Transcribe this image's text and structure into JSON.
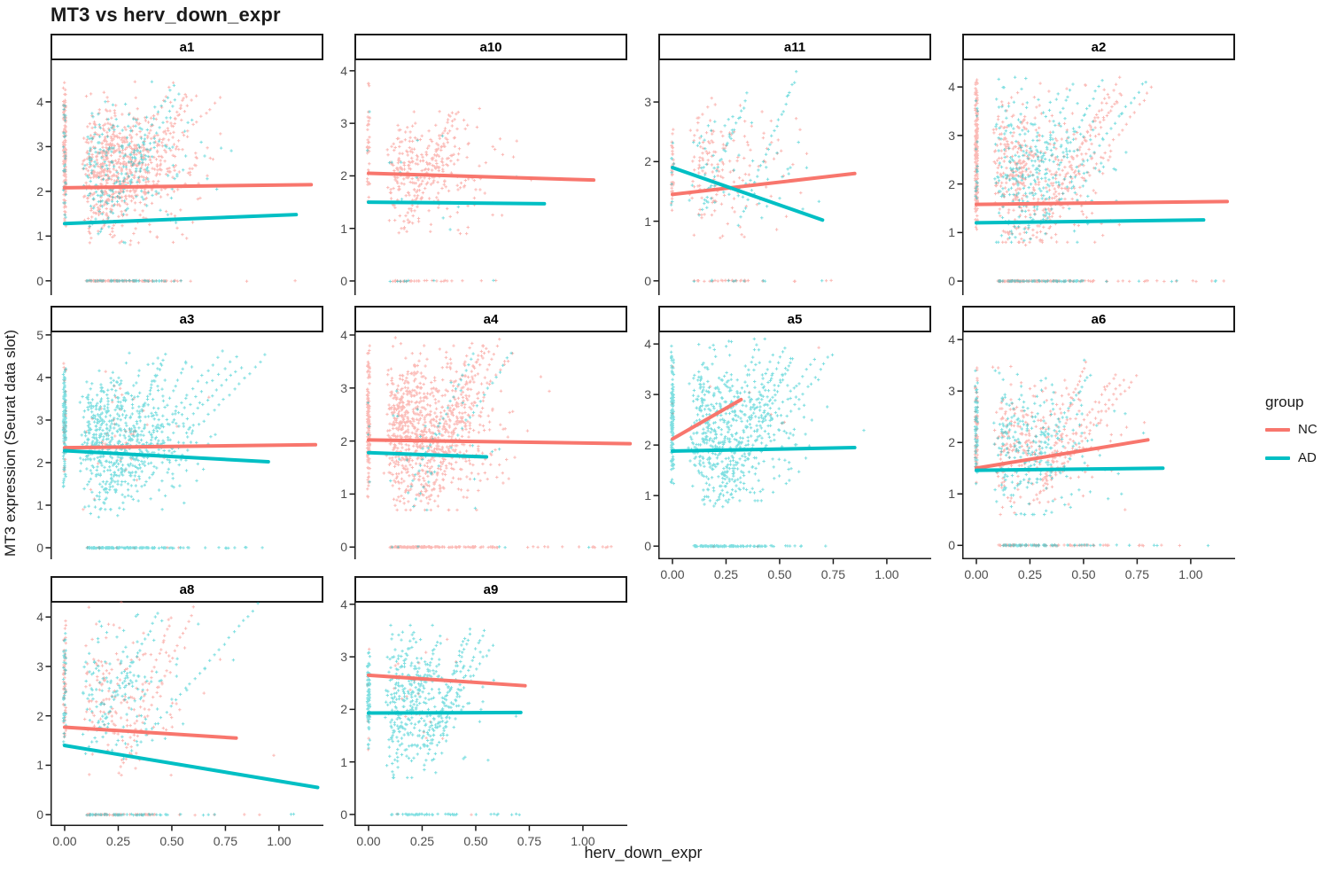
{
  "chart_data": {
    "type": "scatter",
    "title": "MT3 vs herv_down_expr",
    "xlabel": "herv_down_expr",
    "ylabel": "MT3 expression (Seurat data slot)",
    "grid": "off",
    "legend": {
      "title": "group",
      "position": "right",
      "entries": [
        {
          "label": "NC",
          "color": "#F8766D"
        },
        {
          "label": "AD",
          "color": "#00BFC4"
        }
      ]
    },
    "point_style": {
      "shape": "plus",
      "opacity": 0.5,
      "color_nc": "#F8766D",
      "color_ad": "#00BFC4"
    },
    "x_domain": [
      -0.066,
      1.207
    ],
    "x_ticks": {
      "values": [
        0,
        0.25,
        0.5,
        0.75,
        1.0
      ],
      "labels": [
        "0.00",
        "0.25",
        "0.50",
        "0.75",
        "1.00"
      ]
    },
    "facets": [
      {
        "label": "a1",
        "row": 0,
        "col": 0,
        "show_x_axis": false,
        "y_ticks": [
          0,
          1,
          2,
          3,
          4
        ],
        "y_domain": [
          -0.32,
          4.93
        ],
        "trend": {
          "nc": {
            "x": [
              0,
              1.15
            ],
            "y": [
              2.08,
              2.15
            ]
          },
          "ad": {
            "x": [
              0,
              1.08
            ],
            "y": [
              1.28,
              1.48
            ]
          }
        },
        "scatter": {
          "cloud": {
            "nc": 620,
            "ad": 220,
            "y_mean": 2.55,
            "y_sd": 0.68,
            "y_min": 0.85,
            "y_max": 4.45,
            "x_max": 1.18
          },
          "x0_stripe": {
            "nc": 140,
            "ad": 30,
            "y_min": 1.1,
            "y_max": 4.65
          },
          "y0_rug": {
            "nc": 110,
            "ad": 45,
            "x_max": 1.1
          },
          "streaks": {
            "count": 7,
            "nc_frac": 0.72
          }
        }
      },
      {
        "label": "a10",
        "row": 0,
        "col": 1,
        "show_x_axis": false,
        "y_ticks": [
          0,
          1,
          2,
          3,
          4
        ],
        "y_domain": [
          -0.27,
          4.2
        ],
        "trend": {
          "nc": {
            "x": [
              0,
              1.05
            ],
            "y": [
              2.05,
              1.92
            ]
          },
          "ad": {
            "x": [
              0,
              0.82
            ],
            "y": [
              1.5,
              1.47
            ]
          }
        },
        "scatter": {
          "cloud": {
            "nc": 290,
            "ad": 12,
            "y_mean": 2.1,
            "y_sd": 0.52,
            "y_min": 0.9,
            "y_max": 3.45,
            "x_max": 1.05
          },
          "x0_stripe": {
            "nc": 35,
            "ad": 3,
            "y_min": 1.2,
            "y_max": 3.95
          },
          "y0_rug": {
            "nc": 30,
            "ad": 8,
            "x_max": 0.62
          },
          "streaks": {
            "count": 2,
            "nc_frac": 0.95
          }
        }
      },
      {
        "label": "a11",
        "row": 0,
        "col": 2,
        "show_x_axis": false,
        "y_ticks": [
          0,
          1,
          2,
          3
        ],
        "y_domain": [
          -0.24,
          3.7
        ],
        "trend": {
          "nc": {
            "x": [
              0,
              0.85
            ],
            "y": [
              1.45,
              1.8
            ]
          },
          "ad": {
            "x": [
              0,
              0.7
            ],
            "y": [
              1.9,
              1.02
            ]
          }
        },
        "scatter": {
          "cloud": {
            "nc": 160,
            "ad": 62,
            "y_mean": 1.85,
            "y_sd": 0.5,
            "y_min": 0.7,
            "y_max": 3.5,
            "x_max": 0.9
          },
          "x0_stripe": {
            "nc": 35,
            "ad": 8,
            "y_min": 0.95,
            "y_max": 2.75
          },
          "y0_rug": {
            "nc": 32,
            "ad": 10,
            "x_max": 0.78
          },
          "streaks": {
            "count": 2,
            "nc_frac": 0.7
          }
        }
      },
      {
        "label": "a2",
        "row": 0,
        "col": 3,
        "show_x_axis": false,
        "y_ticks": [
          0,
          1,
          2,
          3,
          4
        ],
        "y_domain": [
          -0.29,
          4.55
        ],
        "trend": {
          "nc": {
            "x": [
              0,
              1.17
            ],
            "y": [
              1.58,
              1.64
            ]
          },
          "ad": {
            "x": [
              0,
              1.06
            ],
            "y": [
              1.2,
              1.26
            ]
          }
        },
        "scatter": {
          "cloud": {
            "nc": 380,
            "ad": 280,
            "y_mean": 2.3,
            "y_sd": 0.72,
            "y_min": 0.8,
            "y_max": 4.2,
            "x_max": 1.18
          },
          "x0_stripe": {
            "nc": 200,
            "ad": 18,
            "y_min": 0.95,
            "y_max": 4.35
          },
          "y0_rug": {
            "nc": 150,
            "ad": 70,
            "x_max": 1.18
          },
          "streaks": {
            "count": 8,
            "nc_frac": 0.6
          }
        }
      },
      {
        "label": "a3",
        "row": 1,
        "col": 0,
        "show_x_axis": false,
        "y_ticks": [
          0,
          1,
          2,
          3,
          4,
          5
        ],
        "y_domain": [
          -0.27,
          5.06
        ],
        "trend": {
          "nc": {
            "x": [
              0,
              1.17
            ],
            "y": [
              2.35,
              2.42
            ]
          },
          "ad": {
            "x": [
              0,
              0.95
            ],
            "y": [
              2.28,
              2.02
            ]
          }
        },
        "scatter": {
          "cloud": {
            "nc": 40,
            "ad": 580,
            "y_mean": 2.65,
            "y_sd": 0.72,
            "y_min": 0.9,
            "y_max": 4.65,
            "x_max": 1.17
          },
          "x0_stripe": {
            "nc": 28,
            "ad": 150,
            "y_min": 1.3,
            "y_max": 4.45
          },
          "y0_rug": {
            "nc": 8,
            "ad": 140,
            "x_max": 0.95
          },
          "streaks": {
            "count": 7,
            "nc_frac": 0.08
          }
        }
      },
      {
        "label": "a4",
        "row": 1,
        "col": 1,
        "show_x_axis": false,
        "y_ticks": [
          0,
          1,
          2,
          3,
          4
        ],
        "y_domain": [
          -0.23,
          4.05
        ],
        "trend": {
          "nc": {
            "x": [
              0,
              1.22
            ],
            "y": [
              2.02,
              1.95
            ]
          },
          "ad": {
            "x": [
              0,
              0.55
            ],
            "y": [
              1.78,
              1.7
            ]
          }
        },
        "scatter": {
          "cloud": {
            "nc": 760,
            "ad": 28,
            "y_mean": 2.2,
            "y_sd": 0.68,
            "y_min": 0.7,
            "y_max": 3.95,
            "x_max": 1.2
          },
          "x0_stripe": {
            "nc": 140,
            "ad": 4,
            "y_min": 0.85,
            "y_max": 3.9
          },
          "y0_rug": {
            "nc": 150,
            "ad": 6,
            "x_max": 1.15
          },
          "streaks": {
            "count": 8,
            "nc_frac": 0.95
          }
        }
      },
      {
        "label": "a5",
        "row": 1,
        "col": 2,
        "show_x_axis": true,
        "y_ticks": [
          0,
          1,
          2,
          3,
          4
        ],
        "y_domain": [
          -0.26,
          4.23
        ],
        "trend": {
          "nc": {
            "x": [
              0,
              0.32
            ],
            "y": [
              2.12,
              2.9
            ]
          },
          "ad": {
            "x": [
              0,
              0.85
            ],
            "y": [
              1.88,
              1.95
            ]
          }
        },
        "scatter": {
          "cloud": {
            "nc": 6,
            "ad": 500,
            "y_mean": 2.35,
            "y_sd": 0.68,
            "y_min": 0.9,
            "y_max": 4.1,
            "x_max": 0.95
          },
          "x0_stripe": {
            "nc": 3,
            "ad": 140,
            "y_min": 1.0,
            "y_max": 4.1
          },
          "y0_rug": {
            "nc": 2,
            "ad": 110,
            "x_max": 0.8
          },
          "streaks": {
            "count": 7,
            "nc_frac": 0.05
          }
        }
      },
      {
        "label": "a6",
        "row": 1,
        "col": 3,
        "show_x_axis": true,
        "y_ticks": [
          0,
          1,
          2,
          3,
          4
        ],
        "y_domain": [
          -0.27,
          4.14
        ],
        "trend": {
          "nc": {
            "x": [
              0,
              0.8
            ],
            "y": [
              1.5,
              2.05
            ]
          },
          "ad": {
            "x": [
              0,
              0.87
            ],
            "y": [
              1.46,
              1.5
            ]
          }
        },
        "scatter": {
          "cloud": {
            "nc": 250,
            "ad": 250,
            "y_mean": 2.0,
            "y_sd": 0.62,
            "y_min": 0.6,
            "y_max": 3.6,
            "x_max": 1.15
          },
          "x0_stripe": {
            "nc": 60,
            "ad": 60,
            "y_min": 1.0,
            "y_max": 3.6
          },
          "y0_rug": {
            "nc": 70,
            "ad": 70,
            "x_max": 1.15
          },
          "streaks": {
            "count": 5,
            "nc_frac": 0.5
          }
        }
      },
      {
        "label": "a8",
        "row": 2,
        "col": 0,
        "show_x_axis": true,
        "y_ticks": [
          0,
          1,
          2,
          3,
          4
        ],
        "y_domain": [
          -0.23,
          4.29
        ],
        "trend": {
          "nc": {
            "x": [
              0,
              0.8
            ],
            "y": [
              1.77,
              1.55
            ]
          },
          "ad": {
            "x": [
              0,
              1.18
            ],
            "y": [
              1.4,
              0.55
            ]
          }
        },
        "scatter": {
          "cloud": {
            "nc": 145,
            "ad": 145,
            "y_mean": 2.5,
            "y_sd": 0.72,
            "y_min": 0.8,
            "y_max": 4.3,
            "x_max": 1.2
          },
          "x0_stripe": {
            "nc": 55,
            "ad": 45,
            "y_min": 1.15,
            "y_max": 4.05
          },
          "y0_rug": {
            "nc": 60,
            "ad": 60,
            "x_max": 1.2
          },
          "streaks": {
            "count": 4,
            "nc_frac": 0.5
          }
        }
      },
      {
        "label": "a9",
        "row": 2,
        "col": 1,
        "show_x_axis": true,
        "y_ticks": [
          0,
          1,
          2,
          3,
          4
        ],
        "y_domain": [
          -0.22,
          4.03
        ],
        "trend": {
          "nc": {
            "x": [
              0,
              0.73
            ],
            "y": [
              2.65,
              2.45
            ]
          },
          "ad": {
            "x": [
              0,
              0.71
            ],
            "y": [
              1.93,
              1.94
            ]
          }
        },
        "scatter": {
          "cloud": {
            "nc": 20,
            "ad": 350,
            "y_mean": 2.15,
            "y_sd": 0.62,
            "y_min": 0.7,
            "y_max": 3.6,
            "x_max": 0.78,
            "x_spread": 0.17
          },
          "x0_stripe": {
            "nc": 6,
            "ad": 75,
            "y_min": 1.05,
            "y_max": 3.25
          },
          "y0_rug": {
            "nc": 2,
            "ad": 45,
            "x_max": 0.75
          },
          "streaks": {
            "count": 5,
            "nc_frac": 0.06
          }
        }
      }
    ]
  }
}
